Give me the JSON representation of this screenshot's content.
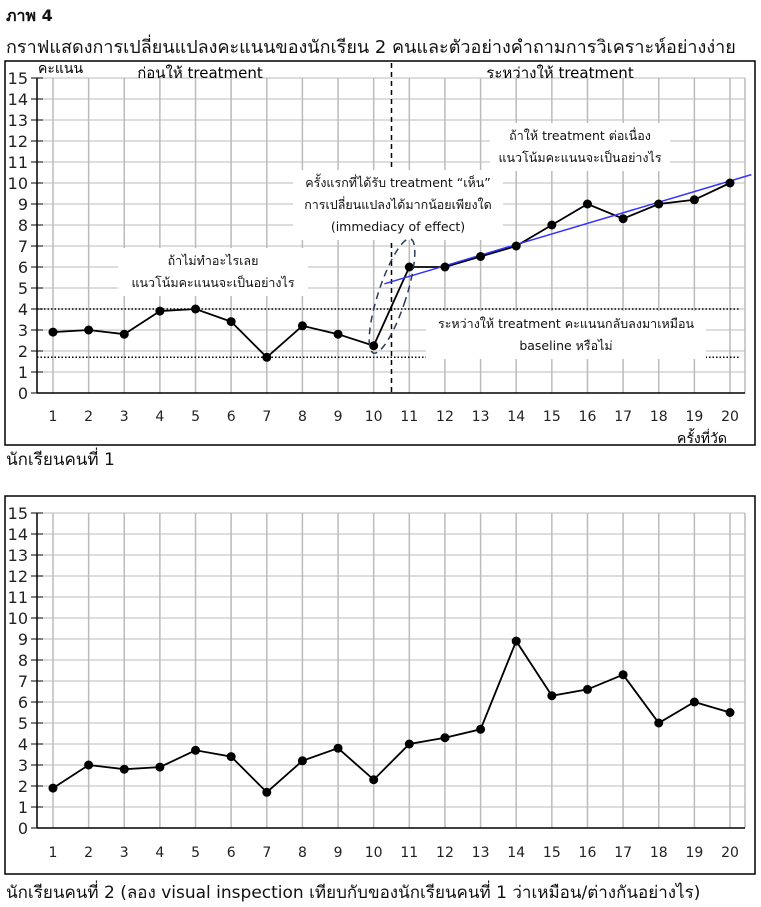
{
  "figure_label": "ภาพ 4",
  "figure_title": "กราฟแสดงการเปลี่ยนแปลงคะแนนของนักเรียน 2 คนและตัวอย่างคำถามการวิเคราะห์อย่างง่าย",
  "colors": {
    "line": "#000000",
    "trend": "#3333ff",
    "grid": "#bbbbbb",
    "ellipse": "#2a3a5a"
  },
  "chart_data": [
    {
      "type": "line",
      "title": "นักเรียนคนที่ 1",
      "ylabel": "คะแนน",
      "xlabel": "ครั้งที่วัด",
      "phase_labels": [
        "ก่อนให้ treatment",
        "ระหว่างให้ treatment"
      ],
      "phase_change_after": 10.5,
      "x": [
        1,
        2,
        3,
        4,
        5,
        6,
        7,
        8,
        9,
        10,
        11,
        12,
        13,
        14,
        15,
        16,
        17,
        18,
        19,
        20
      ],
      "values": [
        2.9,
        3.0,
        2.8,
        3.9,
        4.0,
        3.4,
        1.7,
        3.2,
        2.8,
        2.25,
        6.0,
        6.0,
        6.5,
        7.0,
        8.0,
        9.0,
        8.3,
        9.0,
        9.2,
        10.0
      ],
      "xlim": [
        1,
        20
      ],
      "ylim": [
        0,
        15
      ],
      "yticks": [
        0,
        1,
        2,
        3,
        4,
        5,
        6,
        7,
        8,
        9,
        10,
        11,
        12,
        13,
        14,
        15
      ],
      "grid": true,
      "reference_lines": [
        4.0,
        1.7
      ],
      "trend_line": {
        "from": [
          10.3,
          5.2
        ],
        "to": [
          20.6,
          10.4
        ]
      },
      "annotations": [
        {
          "lines": [
            "ถ้าไม่ทำอะไรเลย",
            "แนวโน้มคะแนนจะเป็นอย่างไร"
          ]
        },
        {
          "lines": [
            "ครั้งแรกที่ได้รับ treatment “เห็น”",
            "การเปลี่ยนแปลงได้มากน้อยเพียงใด",
            "(immediacy of effect)"
          ]
        },
        {
          "lines": [
            "ถ้าให้ treatment ต่อเนื่อง",
            "แนวโน้มคะแนนจะเป็นอย่างไร"
          ]
        },
        {
          "lines": [
            "ระหว่างให้ treatment คะแนนกลับลงมาเหมือน",
            "baseline หรือไม่"
          ]
        }
      ]
    },
    {
      "type": "line",
      "title": "นักเรียนคนที่ 2 (ลอง visual inspection เทียบกับของนักเรียนคนที่ 1 ว่าเหมือน/ต่างกันอย่างไร)",
      "x": [
        1,
        2,
        3,
        4,
        5,
        6,
        7,
        8,
        9,
        10,
        11,
        12,
        13,
        14,
        15,
        16,
        17,
        18,
        19,
        20
      ],
      "values": [
        1.9,
        3.0,
        2.8,
        2.9,
        3.7,
        3.4,
        1.7,
        3.2,
        3.8,
        2.3,
        4.0,
        4.3,
        4.7,
        8.9,
        6.3,
        6.6,
        7.3,
        5.0,
        6.0,
        5.5
      ],
      "xlim": [
        1,
        20
      ],
      "ylim": [
        0,
        15
      ],
      "yticks": [
        0,
        1,
        2,
        3,
        4,
        5,
        6,
        7,
        8,
        9,
        10,
        11,
        12,
        13,
        14,
        15
      ],
      "grid": true
    }
  ]
}
